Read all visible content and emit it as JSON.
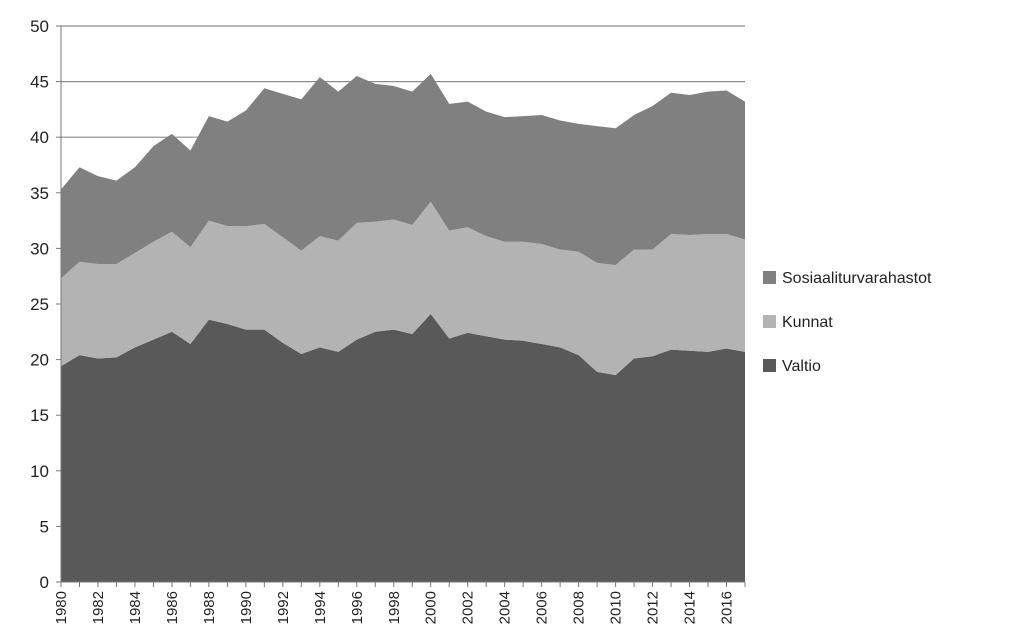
{
  "chart_data": {
    "type": "area",
    "stacked": true,
    "title": "",
    "xlabel": "",
    "ylabel": "",
    "ylim": [
      0,
      50
    ],
    "y_ticks": [
      0,
      5,
      10,
      15,
      20,
      25,
      30,
      35,
      40,
      45,
      50
    ],
    "x": [
      1980,
      1981,
      1982,
      1983,
      1984,
      1985,
      1986,
      1987,
      1988,
      1989,
      1990,
      1991,
      1992,
      1993,
      1994,
      1995,
      1996,
      1997,
      1998,
      1999,
      2000,
      2001,
      2002,
      2003,
      2004,
      2005,
      2006,
      2007,
      2008,
      2009,
      2010,
      2011,
      2012,
      2013,
      2014,
      2015,
      2016,
      2017
    ],
    "x_tick_labels": [
      "1980",
      "1982",
      "1984",
      "1986",
      "1988",
      "1990",
      "1992",
      "1994",
      "1996",
      "1998",
      "2000",
      "2002",
      "2004",
      "2006",
      "2008",
      "2010",
      "2012",
      "2014",
      "2016"
    ],
    "grid": "horizontal",
    "legend_position": "right",
    "series": [
      {
        "name": "Valtio",
        "color": "#595959",
        "values": [
          19.4,
          20.4,
          20.1,
          20.2,
          21.1,
          21.8,
          22.5,
          21.4,
          23.6,
          23.2,
          22.7,
          22.7,
          21.5,
          20.5,
          21.1,
          20.7,
          21.8,
          22.5,
          22.7,
          22.3,
          24.1,
          21.9,
          22.4,
          22.1,
          21.8,
          21.7,
          21.4,
          21.1,
          20.4,
          18.9,
          18.6,
          20.1,
          20.3,
          20.9,
          20.8,
          20.7,
          21.0,
          20.7
        ]
      },
      {
        "name": "Kunnat",
        "color": "#b3b3b3",
        "values": [
          7.9,
          8.4,
          8.5,
          8.4,
          8.5,
          8.8,
          9.0,
          8.7,
          8.9,
          8.8,
          9.3,
          9.5,
          9.5,
          9.3,
          10.0,
          10.0,
          10.5,
          9.9,
          9.9,
          9.8,
          10.1,
          9.7,
          9.5,
          9.0,
          8.8,
          8.9,
          9.0,
          8.8,
          9.3,
          9.8,
          9.9,
          9.8,
          9.6,
          10.4,
          10.4,
          10.6,
          10.3,
          10.1
        ]
      },
      {
        "name": "Sosiaaliturvarahastot",
        "color": "#808080",
        "values": [
          8.0,
          8.5,
          7.9,
          7.5,
          7.7,
          8.6,
          8.8,
          8.7,
          9.4,
          9.4,
          10.4,
          12.2,
          12.9,
          13.6,
          14.3,
          13.4,
          13.2,
          12.4,
          12.0,
          12.0,
          11.5,
          11.4,
          11.3,
          11.2,
          11.2,
          11.3,
          11.6,
          11.6,
          11.5,
          12.3,
          12.3,
          12.1,
          12.9,
          12.7,
          12.6,
          12.8,
          12.9,
          12.4
        ]
      }
    ],
    "legend_order": [
      "Sosiaaliturvarahastot",
      "Kunnat",
      "Valtio"
    ]
  }
}
